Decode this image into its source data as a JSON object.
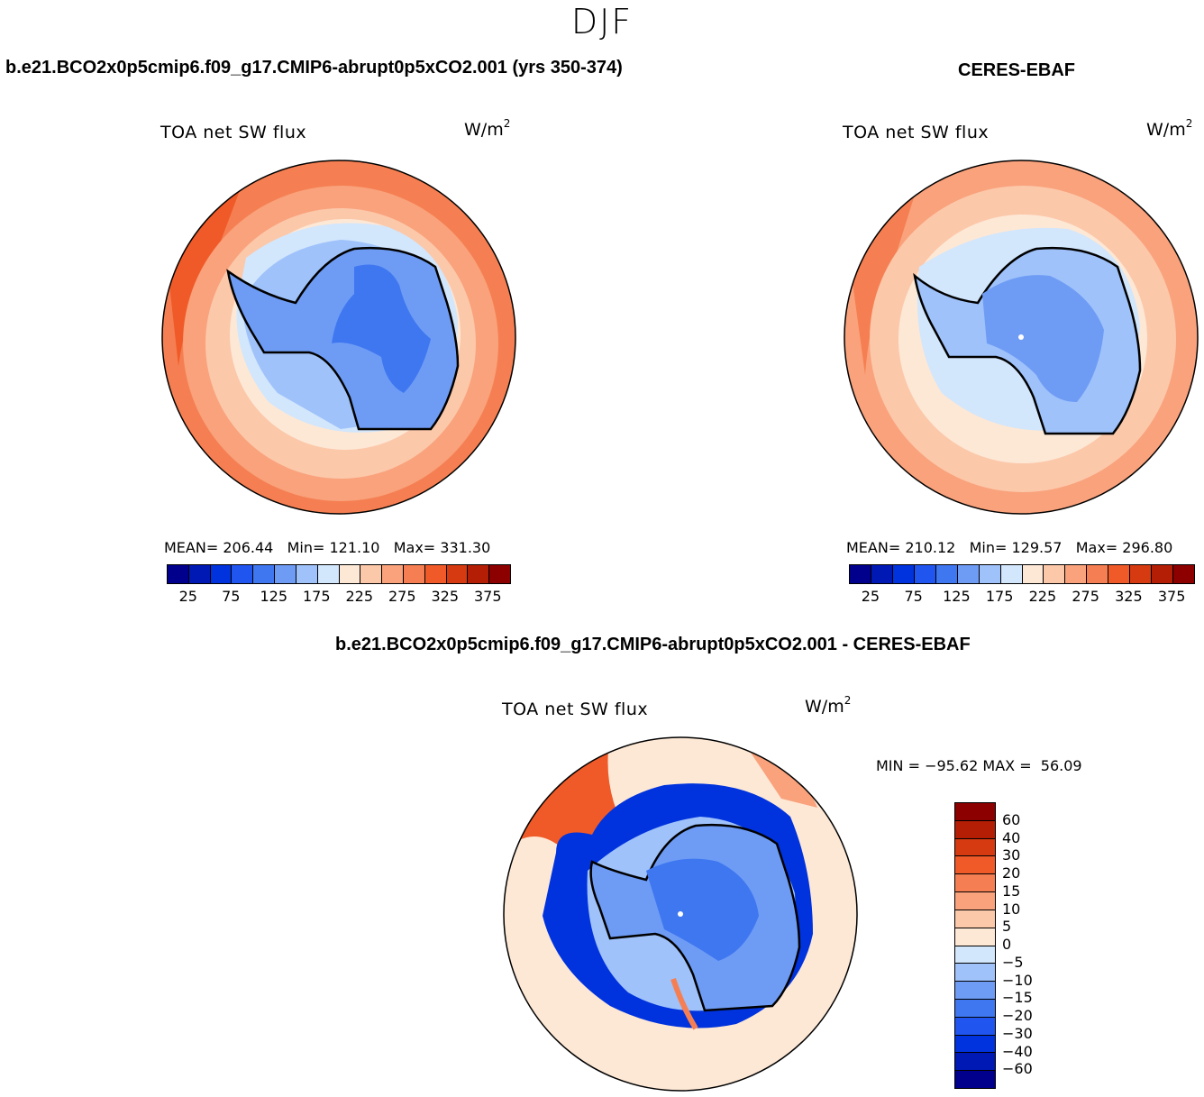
{
  "season": "DJF",
  "panels": {
    "model": {
      "title": "b.e21.BCO2x0p5cmip6.f09_g17.CMIP6-abrupt0p5xCO2.001 (yrs 350-374)",
      "plot_title": "TOA net SW flux",
      "units_base": "W/m",
      "units_exp": "2",
      "mean_label": "MEAN=",
      "mean_value": "206.44",
      "min_label": "Min=",
      "min_value": "121.10",
      "max_label": "Max=",
      "max_value": "331.30"
    },
    "obs": {
      "title": "CERES-EBAF",
      "plot_title": "TOA net SW flux",
      "units_base": "W/m",
      "units_exp": "2",
      "mean_label": "MEAN=",
      "mean_value": "210.12",
      "min_label": "Min=",
      "min_value": "129.57",
      "max_label": "Max=",
      "max_value": "296.80"
    },
    "diff": {
      "title": "b.e21.BCO2x0p5cmip6.f09_g17.CMIP6-abrupt0p5xCO2.001 - CERES-EBAF",
      "plot_title": "TOA net SW flux",
      "units_base": "W/m",
      "units_exp": "2",
      "min_label": "MIN =",
      "min_value": "−95.62",
      "max_label": "MAX =",
      "max_value": "56.09"
    }
  },
  "colorbar_top": {
    "colors": [
      "#00008c",
      "#0018b4",
      "#0033dd",
      "#2055f0",
      "#3f77f0",
      "#6e9cf5",
      "#9fc2fa",
      "#d2e6fc",
      "#fde8d6",
      "#fcc8aa",
      "#f9a27c",
      "#f57f52",
      "#f05a28",
      "#d63a10",
      "#b41e05",
      "#8c0000"
    ],
    "tick_labels": [
      "25",
      "75",
      "125",
      "175",
      "225",
      "275",
      "325",
      "375"
    ]
  },
  "colorbar_diff": {
    "colors": [
      "#8c0000",
      "#b41e05",
      "#d63a10",
      "#f05a28",
      "#f57f52",
      "#f9a27c",
      "#fcc8aa",
      "#fde8d6",
      "#d2e6fc",
      "#9fc2fa",
      "#6e9cf5",
      "#3f77f0",
      "#2055f0",
      "#0033dd",
      "#0018b4",
      "#00008c"
    ],
    "tick_labels": [
      "60",
      "40",
      "30",
      "20",
      "15",
      "10",
      "5",
      "0",
      "−5",
      "−10",
      "−15",
      "−20",
      "−30",
      "−40",
      "−60"
    ]
  },
  "map_colors": {
    "ring1": "#f05a28",
    "ring2": "#f57f52",
    "ring3": "#f9a27c",
    "ring4": "#fcc8aa",
    "ring5": "#fde8d6",
    "ice1": "#d2e6fc",
    "ice2": "#9fc2fa",
    "land": "#6e9cf5",
    "land_core": "#3f77f0",
    "diff_bg": "#fde8d6",
    "diff_blue": "#0033dd",
    "diff_mid": "#6e9cf5",
    "diff_red": "#f05a28"
  }
}
